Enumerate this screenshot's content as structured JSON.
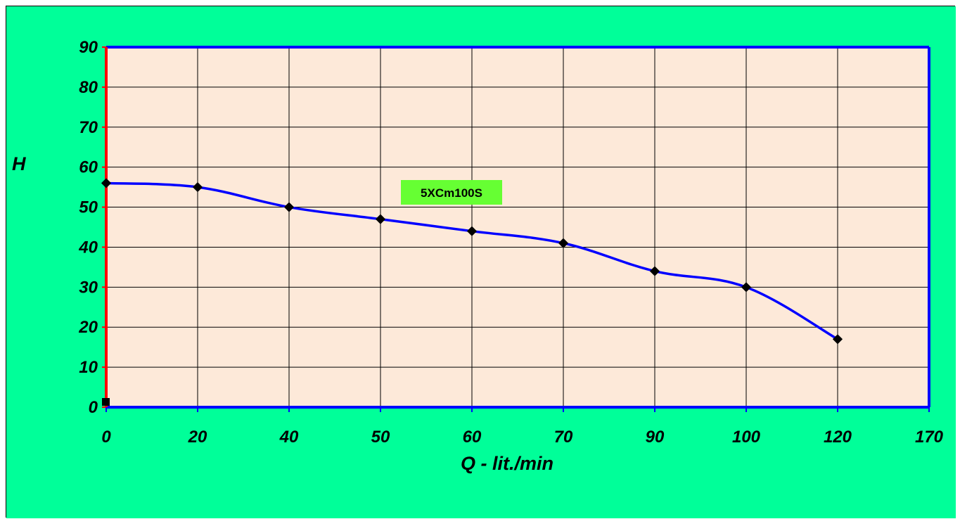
{
  "colors": {
    "background": "#00ff99",
    "plot_area": "#fde9d9",
    "curve": "#0000ff",
    "frame": "#0000ff",
    "y_axis": "#ff0000",
    "grid": "#000000",
    "label_box": "#66ff33"
  },
  "chart_data": {
    "type": "line",
    "title": "",
    "xlabel": "Q - lit./min",
    "ylabel": "H",
    "x_categories": [
      "0",
      "20",
      "40",
      "50",
      "60",
      "70",
      "90",
      "100",
      "120",
      "170"
    ],
    "y_ticks": [
      0,
      10,
      20,
      30,
      40,
      50,
      60,
      70,
      80,
      90
    ],
    "ylim": [
      0,
      90
    ],
    "grid": true,
    "series": [
      {
        "name": "5XCm100S",
        "x": [
          "0",
          "20",
          "40",
          "50",
          "60",
          "70",
          "90",
          "100",
          "120"
        ],
        "y": [
          56,
          55,
          50,
          47,
          44,
          41,
          34,
          30,
          17
        ]
      }
    ]
  }
}
